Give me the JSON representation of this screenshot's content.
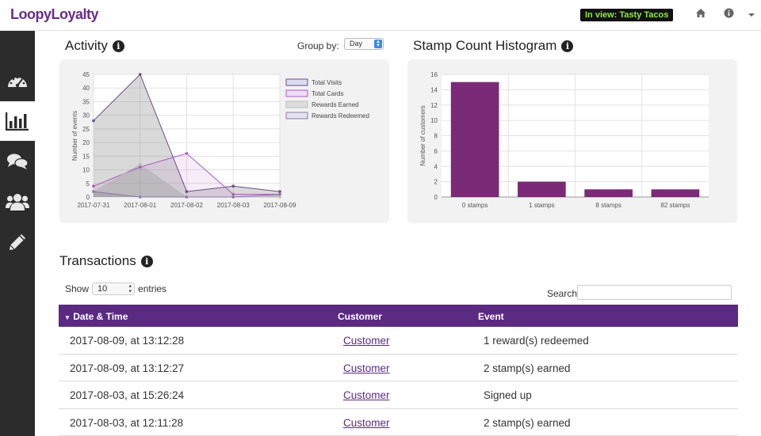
{
  "app": {
    "logo": "LoopyLoyalty",
    "in_view": "In view: Tasty Tacos"
  },
  "icons": {
    "home": "home-icon",
    "info": "info-icon",
    "menu": "caret-down-icon"
  },
  "sidebar": {
    "items": [
      {
        "name": "dashboard",
        "icon": "speedometer-icon"
      },
      {
        "name": "analytics",
        "icon": "bar-chart-icon",
        "active": true
      },
      {
        "name": "messages",
        "icon": "chat-icon"
      },
      {
        "name": "customers",
        "icon": "users-icon"
      },
      {
        "name": "edit",
        "icon": "pencil-icon"
      }
    ]
  },
  "activity": {
    "title": "Activity",
    "group_by_label": "Group by:",
    "group_by_value": "Day"
  },
  "histogram": {
    "title": "Stamp Count Histogram"
  },
  "transactions": {
    "title": "Transactions",
    "show_label": "Show",
    "entries_value": "10",
    "entries_label": "entries",
    "search_label": "Search:",
    "columns": [
      "Date & Time",
      "Customer",
      "Event"
    ],
    "rows": [
      {
        "date": "2017-08-09, at 13:12:28",
        "customer": "Customer",
        "event": "1 reward(s) redeemed"
      },
      {
        "date": "2017-08-09, at 13:12:27",
        "customer": "Customer",
        "event": "2 stamp(s) earned"
      },
      {
        "date": "2017-08-03, at 15:26:24",
        "customer": "Customer",
        "event": "Signed up"
      },
      {
        "date": "2017-08-03, at 12:11:28",
        "customer": "Customer",
        "event": "2 stamp(s) earned"
      }
    ]
  },
  "chart_data": [
    {
      "type": "area",
      "ylabel": "Number of events",
      "categories": [
        "2017-07-31",
        "2017-08-01",
        "2017-08-02",
        "2017-08-03",
        "2017-08-09"
      ],
      "yticks": [
        0,
        5,
        10,
        15,
        20,
        25,
        30,
        35,
        40,
        45
      ],
      "ylim": [
        0,
        45
      ],
      "legend_position": "top-right",
      "series": [
        {
          "name": "Total Visits",
          "values": [
            28,
            45,
            2,
            4,
            2
          ],
          "color": "#6b4c8a"
        },
        {
          "name": "Total Cards",
          "values": [
            4,
            11,
            16,
            1,
            1
          ],
          "color": "#a95cc0"
        },
        {
          "name": "Rewards Earned",
          "values": [
            2,
            12,
            0,
            0,
            0
          ],
          "color": "#bdbdbd"
        },
        {
          "name": "Rewards Redeemed",
          "values": [
            2,
            0,
            0,
            0,
            1
          ],
          "color": "#8e7aa8"
        }
      ]
    },
    {
      "type": "bar",
      "ylabel": "Number of customers",
      "categories": [
        "0 stamps",
        "1 stamps",
        "8 stamps",
        "82 stamps"
      ],
      "values": [
        15,
        2,
        1,
        1
      ],
      "yticks": [
        0,
        2,
        4,
        6,
        8,
        10,
        12,
        14,
        16
      ],
      "ylim": [
        0,
        16
      ],
      "color": "#7a2a76"
    }
  ]
}
